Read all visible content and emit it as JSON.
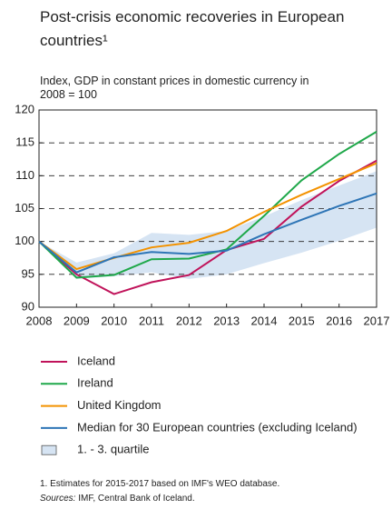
{
  "chart_data": {
    "type": "line",
    "title": "Post-crisis economic recoveries in European countries¹",
    "subtitle": "Index, GDP in constant prices in domestic currency in 2008 = 100",
    "x": [
      2008,
      2009,
      2010,
      2011,
      2012,
      2013,
      2014,
      2015,
      2016,
      2017
    ],
    "xlim": [
      2008,
      2017
    ],
    "xticks": [
      2008,
      2009,
      2010,
      2011,
      2012,
      2013,
      2014,
      2015,
      2016,
      2017
    ],
    "ylim": [
      90,
      120
    ],
    "yticks": [
      90,
      95,
      100,
      105,
      110,
      115,
      120
    ],
    "grid": true,
    "series": [
      {
        "name": "Iceland",
        "color": "#c0135a",
        "values": [
          100,
          95,
          92,
          93.8,
          94.9,
          98.7,
          100.4,
          105.3,
          109.2,
          112.3
        ]
      },
      {
        "name": "Ireland",
        "color": "#1fa84a",
        "values": [
          100,
          94.5,
          94.9,
          97.3,
          97.4,
          98.8,
          103.9,
          109.3,
          113.3,
          116.7
        ]
      },
      {
        "name": "United Kingdom",
        "color": "#f39200",
        "values": [
          100,
          95.8,
          97.5,
          99.1,
          99.8,
          101.6,
          104.5,
          107.1,
          109.5,
          111.9
        ]
      },
      {
        "name": "Median for 30 European countries (excluding Iceland)",
        "color": "#2e75b6",
        "values": [
          100,
          95.3,
          97.6,
          98.4,
          98.1,
          98.6,
          101.1,
          103.3,
          105.4,
          107.3
        ]
      }
    ],
    "band": {
      "name": "1. - 3. quartile",
      "color": "#d6e4f3",
      "lower": [
        100,
        94.3,
        94.7,
        95.3,
        94.3,
        95.0,
        96.7,
        98.3,
        100.1,
        102.1
      ],
      "upper": [
        100,
        96.8,
        98.2,
        101.3,
        101.0,
        101.6,
        103.8,
        106.3,
        108.5,
        110.7
      ]
    },
    "footnote": "1. Estimates for 2015-2017 based on IMF's WEO database.",
    "sources_label": "Sources:",
    "sources": "IMF, Central Bank of Iceland."
  }
}
